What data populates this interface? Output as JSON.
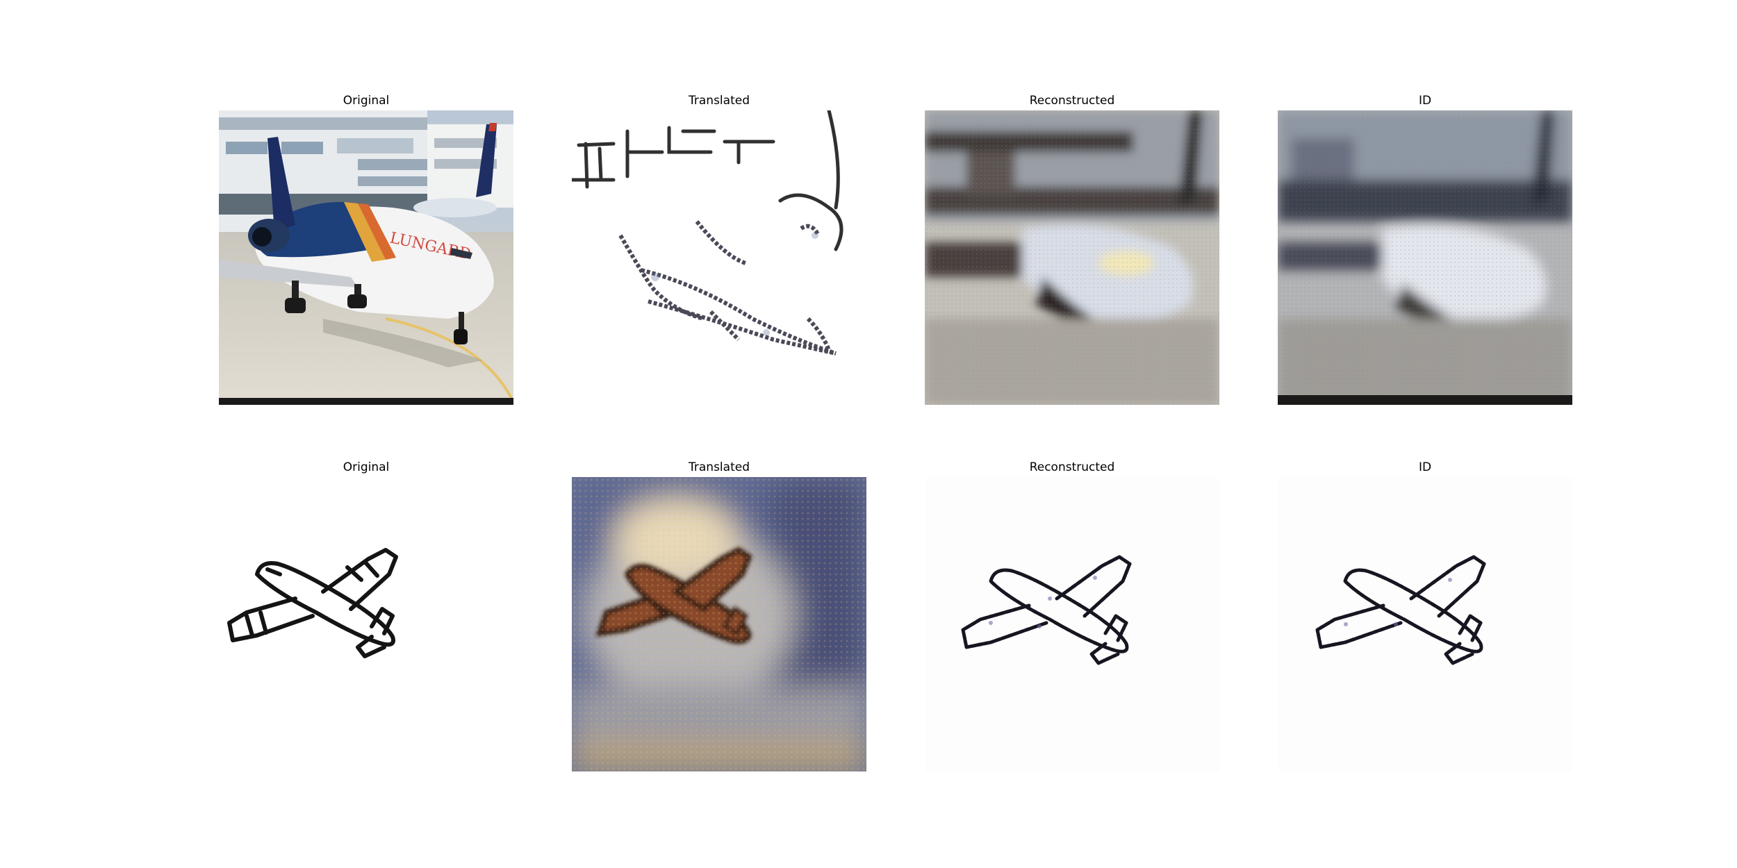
{
  "rows": [
    {
      "panels": [
        {
          "title": "Original",
          "content": "photo-airliner"
        },
        {
          "title": "Translated",
          "content": "sketch-airliner"
        },
        {
          "title": "Reconstructed",
          "content": "blurry-photo-airliner"
        },
        {
          "title": "ID",
          "content": "blurry-photo-airliner"
        }
      ]
    },
    {
      "panels": [
        {
          "title": "Original",
          "content": "sketch-plane"
        },
        {
          "title": "Translated",
          "content": "colorized-plane"
        },
        {
          "title": "Reconstructed",
          "content": "sketch-plane-noisy"
        },
        {
          "title": "ID",
          "content": "sketch-plane-noisy"
        }
      ]
    }
  ]
}
